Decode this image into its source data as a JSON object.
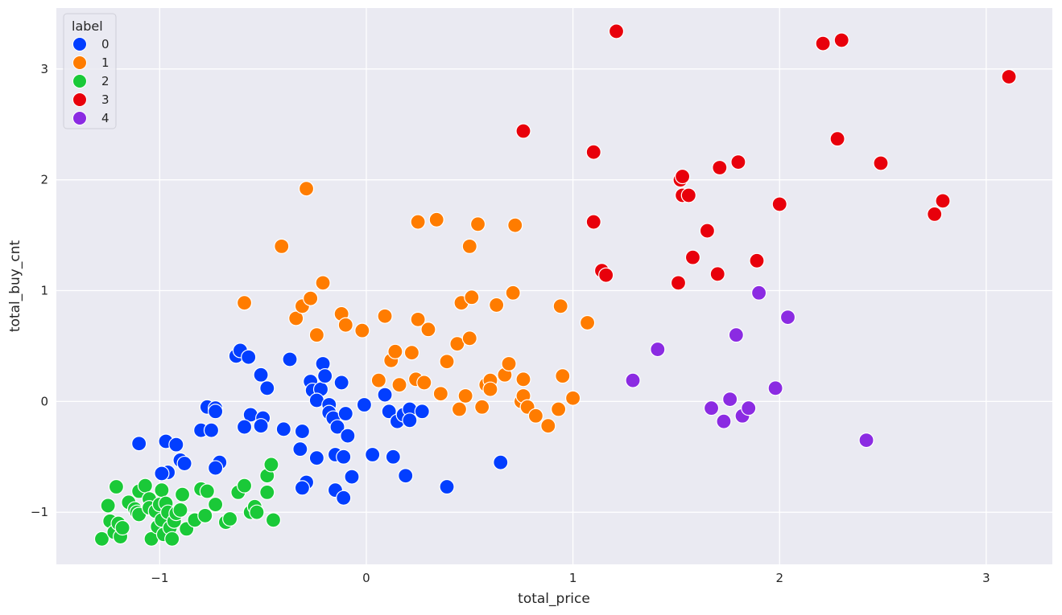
{
  "chart_data": {
    "type": "scatter",
    "title": "",
    "xlabel": "total_price",
    "ylabel": "total_buy_cnt",
    "xlim": [
      -1.5,
      3.32
    ],
    "ylim": [
      -1.47,
      3.55
    ],
    "xticks": [
      -1,
      0,
      1,
      2,
      3
    ],
    "yticks": [
      -1,
      0,
      1,
      2,
      3
    ],
    "tick_labels_x": [
      "−1",
      "0",
      "1",
      "2",
      "3"
    ],
    "tick_labels_y": [
      "−1",
      "0",
      "1",
      "2",
      "3"
    ],
    "grid": true,
    "legend": {
      "title": "label",
      "placement": "top-left",
      "entries": [
        "0",
        "1",
        "2",
        "3",
        "4"
      ]
    },
    "colors": {
      "plot_background": "#eaeaf2",
      "grid": "#ffffff",
      "0": "#023eff",
      "1": "#ff7c00",
      "2": "#1ac938",
      "3": "#e8000b",
      "4": "#8b2be2"
    },
    "series": [
      {
        "name": "0",
        "points": [
          [
            -1.1,
            -0.38
          ],
          [
            -0.97,
            -0.36
          ],
          [
            -0.92,
            -0.39
          ],
          [
            -0.9,
            -0.53
          ],
          [
            -0.88,
            -0.56
          ],
          [
            -0.96,
            -0.64
          ],
          [
            -0.99,
            -0.65
          ],
          [
            -0.8,
            -0.26
          ],
          [
            -0.75,
            -0.26
          ],
          [
            -0.77,
            -0.05
          ],
          [
            -0.73,
            -0.06
          ],
          [
            -0.73,
            -0.09
          ],
          [
            -0.71,
            -0.55
          ],
          [
            -0.73,
            -0.6
          ],
          [
            -0.63,
            0.41
          ],
          [
            -0.61,
            0.46
          ],
          [
            -0.57,
            0.4
          ],
          [
            -0.56,
            -0.12
          ],
          [
            -0.59,
            -0.23
          ],
          [
            -0.51,
            0.24
          ],
          [
            -0.5,
            -0.15
          ],
          [
            -0.51,
            -0.22
          ],
          [
            -0.48,
            0.12
          ],
          [
            -0.37,
            0.38
          ],
          [
            -0.4,
            -0.25
          ],
          [
            -0.31,
            -0.27
          ],
          [
            -0.32,
            -0.43
          ],
          [
            -0.27,
            0.18
          ],
          [
            -0.26,
            0.1
          ],
          [
            -0.22,
            0.11
          ],
          [
            -0.21,
            0.34
          ],
          [
            -0.2,
            0.23
          ],
          [
            -0.24,
            0.01
          ],
          [
            -0.18,
            -0.03
          ],
          [
            -0.18,
            -0.1
          ],
          [
            -0.16,
            -0.15
          ],
          [
            -0.14,
            -0.23
          ],
          [
            -0.12,
            0.17
          ],
          [
            -0.1,
            -0.11
          ],
          [
            -0.09,
            -0.31
          ],
          [
            -0.15,
            -0.48
          ],
          [
            -0.24,
            -0.51
          ],
          [
            -0.29,
            -0.73
          ],
          [
            -0.31,
            -0.78
          ],
          [
            -0.15,
            -0.8
          ],
          [
            -0.11,
            -0.5
          ],
          [
            -0.07,
            -0.68
          ],
          [
            -0.11,
            -0.87
          ],
          [
            -0.01,
            -0.03
          ],
          [
            0.03,
            -0.48
          ],
          [
            0.09,
            0.06
          ],
          [
            0.11,
            -0.09
          ],
          [
            0.13,
            -0.5
          ],
          [
            0.15,
            -0.18
          ],
          [
            0.18,
            -0.12
          ],
          [
            0.21,
            -0.07
          ],
          [
            0.21,
            -0.17
          ],
          [
            0.27,
            -0.09
          ],
          [
            0.19,
            -0.67
          ],
          [
            0.39,
            -0.77
          ],
          [
            0.65,
            -0.55
          ]
        ]
      },
      {
        "name": "1",
        "points": [
          [
            -0.59,
            0.89
          ],
          [
            -0.41,
            1.4
          ],
          [
            -0.29,
            1.92
          ],
          [
            -0.34,
            0.75
          ],
          [
            -0.31,
            0.86
          ],
          [
            -0.27,
            0.93
          ],
          [
            -0.24,
            0.6
          ],
          [
            -0.21,
            1.07
          ],
          [
            -0.12,
            0.79
          ],
          [
            -0.1,
            0.69
          ],
          [
            -0.02,
            0.64
          ],
          [
            0.06,
            0.19
          ],
          [
            0.09,
            0.77
          ],
          [
            0.12,
            0.37
          ],
          [
            0.14,
            0.45
          ],
          [
            0.16,
            0.15
          ],
          [
            0.22,
            0.44
          ],
          [
            0.24,
            0.2
          ],
          [
            0.25,
            0.74
          ],
          [
            0.25,
            1.62
          ],
          [
            0.28,
            0.17
          ],
          [
            0.3,
            0.65
          ],
          [
            0.34,
            1.64
          ],
          [
            0.36,
            0.07
          ],
          [
            0.39,
            0.36
          ],
          [
            0.44,
            0.52
          ],
          [
            0.45,
            -0.07
          ],
          [
            0.46,
            0.89
          ],
          [
            0.48,
            0.05
          ],
          [
            0.5,
            0.57
          ],
          [
            0.5,
            1.4
          ],
          [
            0.51,
            0.94
          ],
          [
            0.54,
            1.6
          ],
          [
            0.56,
            -0.05
          ],
          [
            0.58,
            0.15
          ],
          [
            0.6,
            0.19
          ],
          [
            0.6,
            0.11
          ],
          [
            0.63,
            0.87
          ],
          [
            0.67,
            0.24
          ],
          [
            0.69,
            0.34
          ],
          [
            0.71,
            0.98
          ],
          [
            0.72,
            1.59
          ],
          [
            0.75,
            0.0
          ],
          [
            0.76,
            0.05
          ],
          [
            0.76,
            0.2
          ],
          [
            0.78,
            -0.05
          ],
          [
            0.82,
            -0.13
          ],
          [
            0.88,
            -0.22
          ],
          [
            0.93,
            -0.07
          ],
          [
            0.94,
            0.86
          ],
          [
            0.95,
            0.23
          ],
          [
            1.0,
            0.03
          ],
          [
            1.07,
            0.71
          ]
        ]
      },
      {
        "name": "2",
        "points": [
          [
            -1.28,
            -1.24
          ],
          [
            -1.25,
            -0.94
          ],
          [
            -1.24,
            -1.08
          ],
          [
            -1.22,
            -1.18
          ],
          [
            -1.21,
            -0.77
          ],
          [
            -1.2,
            -1.1
          ],
          [
            -1.19,
            -1.22
          ],
          [
            -1.18,
            -1.14
          ],
          [
            -1.15,
            -0.91
          ],
          [
            -1.12,
            -0.97
          ],
          [
            -1.11,
            -1.0
          ],
          [
            -1.1,
            -0.81
          ],
          [
            -1.1,
            -1.02
          ],
          [
            -1.07,
            -0.76
          ],
          [
            -1.05,
            -0.88
          ],
          [
            -1.05,
            -0.96
          ],
          [
            -1.04,
            -1.24
          ],
          [
            -1.02,
            -0.99
          ],
          [
            -1.01,
            -1.13
          ],
          [
            -1.0,
            -0.93
          ],
          [
            -0.99,
            -1.07
          ],
          [
            -0.99,
            -0.8
          ],
          [
            -0.98,
            -1.2
          ],
          [
            -0.97,
            -0.92
          ],
          [
            -0.96,
            -1.0
          ],
          [
            -0.95,
            -1.14
          ],
          [
            -0.94,
            -1.24
          ],
          [
            -0.93,
            -1.08
          ],
          [
            -0.92,
            -1.01
          ],
          [
            -0.9,
            -0.98
          ],
          [
            -0.89,
            -0.84
          ],
          [
            -0.87,
            -1.15
          ],
          [
            -0.83,
            -1.07
          ],
          [
            -0.8,
            -0.79
          ],
          [
            -0.78,
            -1.03
          ],
          [
            -0.77,
            -0.81
          ],
          [
            -0.73,
            -0.93
          ],
          [
            -0.68,
            -1.09
          ],
          [
            -0.66,
            -1.06
          ],
          [
            -0.62,
            -0.82
          ],
          [
            -0.59,
            -0.76
          ],
          [
            -0.56,
            -1.0
          ],
          [
            -0.54,
            -0.95
          ],
          [
            -0.53,
            -1.0
          ],
          [
            -0.48,
            -0.67
          ],
          [
            -0.48,
            -0.82
          ],
          [
            -0.46,
            -0.57
          ],
          [
            -0.45,
            -1.07
          ]
        ]
      },
      {
        "name": "3",
        "points": [
          [
            0.76,
            2.44
          ],
          [
            1.1,
            2.25
          ],
          [
            1.1,
            1.62
          ],
          [
            1.14,
            1.18
          ],
          [
            1.16,
            1.14
          ],
          [
            1.21,
            3.34
          ],
          [
            1.51,
            1.07
          ],
          [
            1.52,
            2.0
          ],
          [
            1.53,
            2.03
          ],
          [
            1.53,
            1.86
          ],
          [
            1.56,
            1.86
          ],
          [
            1.58,
            1.3
          ],
          [
            1.65,
            1.54
          ],
          [
            1.7,
            1.15
          ],
          [
            1.71,
            2.11
          ],
          [
            1.8,
            2.16
          ],
          [
            1.89,
            1.27
          ],
          [
            2.0,
            1.78
          ],
          [
            2.21,
            3.23
          ],
          [
            2.28,
            2.37
          ],
          [
            2.3,
            3.26
          ],
          [
            2.49,
            2.15
          ],
          [
            2.75,
            1.69
          ],
          [
            2.79,
            1.81
          ],
          [
            3.11,
            2.93
          ]
        ]
      },
      {
        "name": "4",
        "points": [
          [
            1.29,
            0.19
          ],
          [
            1.41,
            0.47
          ],
          [
            1.67,
            -0.06
          ],
          [
            1.73,
            -0.18
          ],
          [
            1.76,
            0.02
          ],
          [
            1.79,
            0.6
          ],
          [
            1.82,
            -0.13
          ],
          [
            1.85,
            -0.06
          ],
          [
            1.9,
            0.98
          ],
          [
            1.98,
            0.12
          ],
          [
            2.04,
            0.76
          ],
          [
            2.42,
            -0.35
          ]
        ]
      }
    ]
  }
}
